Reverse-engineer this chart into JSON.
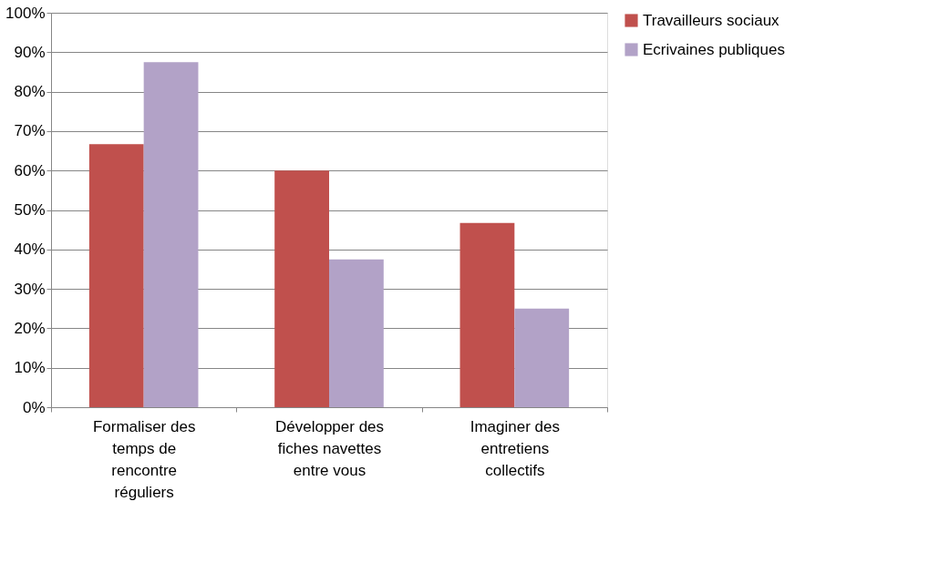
{
  "chart_data": {
    "type": "bar",
    "categories": [
      "Formaliser des temps de rencontre réguliers",
      "Développer des fiches navettes entre vous",
      "Imaginer des entretiens collectifs"
    ],
    "series": [
      {
        "name": "Travailleurs sociaux",
        "color": "#c0504d",
        "values": [
          66.7,
          60,
          46.7
        ]
      },
      {
        "name": "Ecrivaines publiques",
        "color": "#b2a2c7",
        "values": [
          87.5,
          37.5,
          25
        ]
      }
    ],
    "ylim": [
      0,
      100
    ],
    "yticks": [
      {
        "value": 0,
        "label": "0%"
      },
      {
        "value": 10,
        "label": "10%"
      },
      {
        "value": 20,
        "label": "20%"
      },
      {
        "value": 30,
        "label": "30%"
      },
      {
        "value": 40,
        "label": "40%"
      },
      {
        "value": 50,
        "label": "50%"
      },
      {
        "value": 60,
        "label": "60%"
      },
      {
        "value": 70,
        "label": "70%"
      },
      {
        "value": 80,
        "label": "80%"
      },
      {
        "value": 90,
        "label": "90%"
      },
      {
        "value": 100,
        "label": "100%"
      }
    ],
    "grid": "y",
    "legend": "right"
  }
}
